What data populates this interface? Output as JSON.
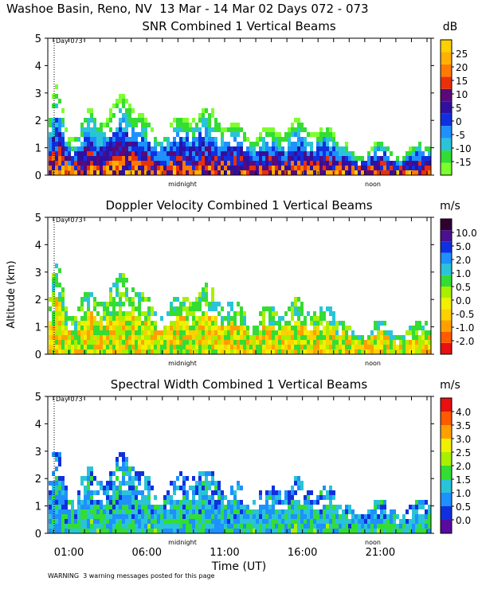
{
  "header": {
    "title": "Washoe Basin, Reno, NV  13 Mar - 14 Mar 02 Days 072 - 073"
  },
  "footer": {
    "xlabel": "Time (UT)",
    "warning": "WARNING  3 warning messages posted for this page"
  },
  "chart_data": [
    {
      "type": "heatmap",
      "title": "SNR Combined 1 Vertical Beams",
      "ylabel": "",
      "xlabel": "",
      "ylim": [
        0,
        5
      ],
      "yticks": [
        "0",
        "1",
        "2",
        "3",
        "4",
        "5"
      ],
      "day_marker": "Day 073",
      "time_markers": [
        "midnight",
        "noon"
      ],
      "colorbar": {
        "unit": "dB",
        "labels": [
          "-15",
          "-10",
          "-5",
          "0",
          "5",
          "10",
          "15",
          "20",
          "25"
        ],
        "colors": [
          "#7cff2e",
          "#33dd33",
          "#29c4d8",
          "#1e90ff",
          "#1030e0",
          "#3010a0",
          "#5a0a78",
          "#e8300a",
          "#ff7a00",
          "#ffb000",
          "#ffd000"
        ]
      }
    },
    {
      "type": "heatmap",
      "title": "Doppler Velocity Combined 1 Vertical Beams",
      "ylabel": "Altitude (km)",
      "xlabel": "",
      "ylim": [
        0,
        5
      ],
      "yticks": [
        "0",
        "1",
        "2",
        "3",
        "4",
        "5"
      ],
      "day_marker": "Day 073",
      "time_markers": [
        "midnight",
        "noon"
      ],
      "colorbar": {
        "unit": "m/s",
        "labels": [
          "-2.0",
          "-1.0",
          "-0.5",
          "0.0",
          "0.5",
          "1.0",
          "2.0",
          "5.0",
          "10.0"
        ],
        "colors": [
          "#e81010",
          "#ff5a00",
          "#ffa000",
          "#ffd000",
          "#f0f000",
          "#a8f000",
          "#33dd33",
          "#29c4d8",
          "#1e90ff",
          "#1030e0",
          "#4a1090",
          "#300030"
        ]
      }
    },
    {
      "type": "heatmap",
      "title": "Spectral Width Combined 1 Vertical Beams",
      "ylabel": "",
      "xlabel": "Time (UT)",
      "ylim": [
        0,
        5
      ],
      "yticks": [
        "0",
        "1",
        "2",
        "3",
        "4",
        "5"
      ],
      "xticks": [
        "01:00",
        "06:00",
        "11:00",
        "16:00",
        "21:00"
      ],
      "day_marker": "Day 073",
      "time_markers": [
        "midnight",
        "noon"
      ],
      "colorbar": {
        "unit": "m/s",
        "labels": [
          "0.0",
          "0.5",
          "1.0",
          "1.5",
          "2.0",
          "2.5",
          "3.0",
          "3.5",
          "4.0"
        ],
        "colors": [
          "#5a0aa0",
          "#1030e0",
          "#1e90ff",
          "#29c4d8",
          "#33dd33",
          "#a8f000",
          "#f0f000",
          "#ffa000",
          "#ff5a00",
          "#e81010"
        ]
      }
    }
  ]
}
